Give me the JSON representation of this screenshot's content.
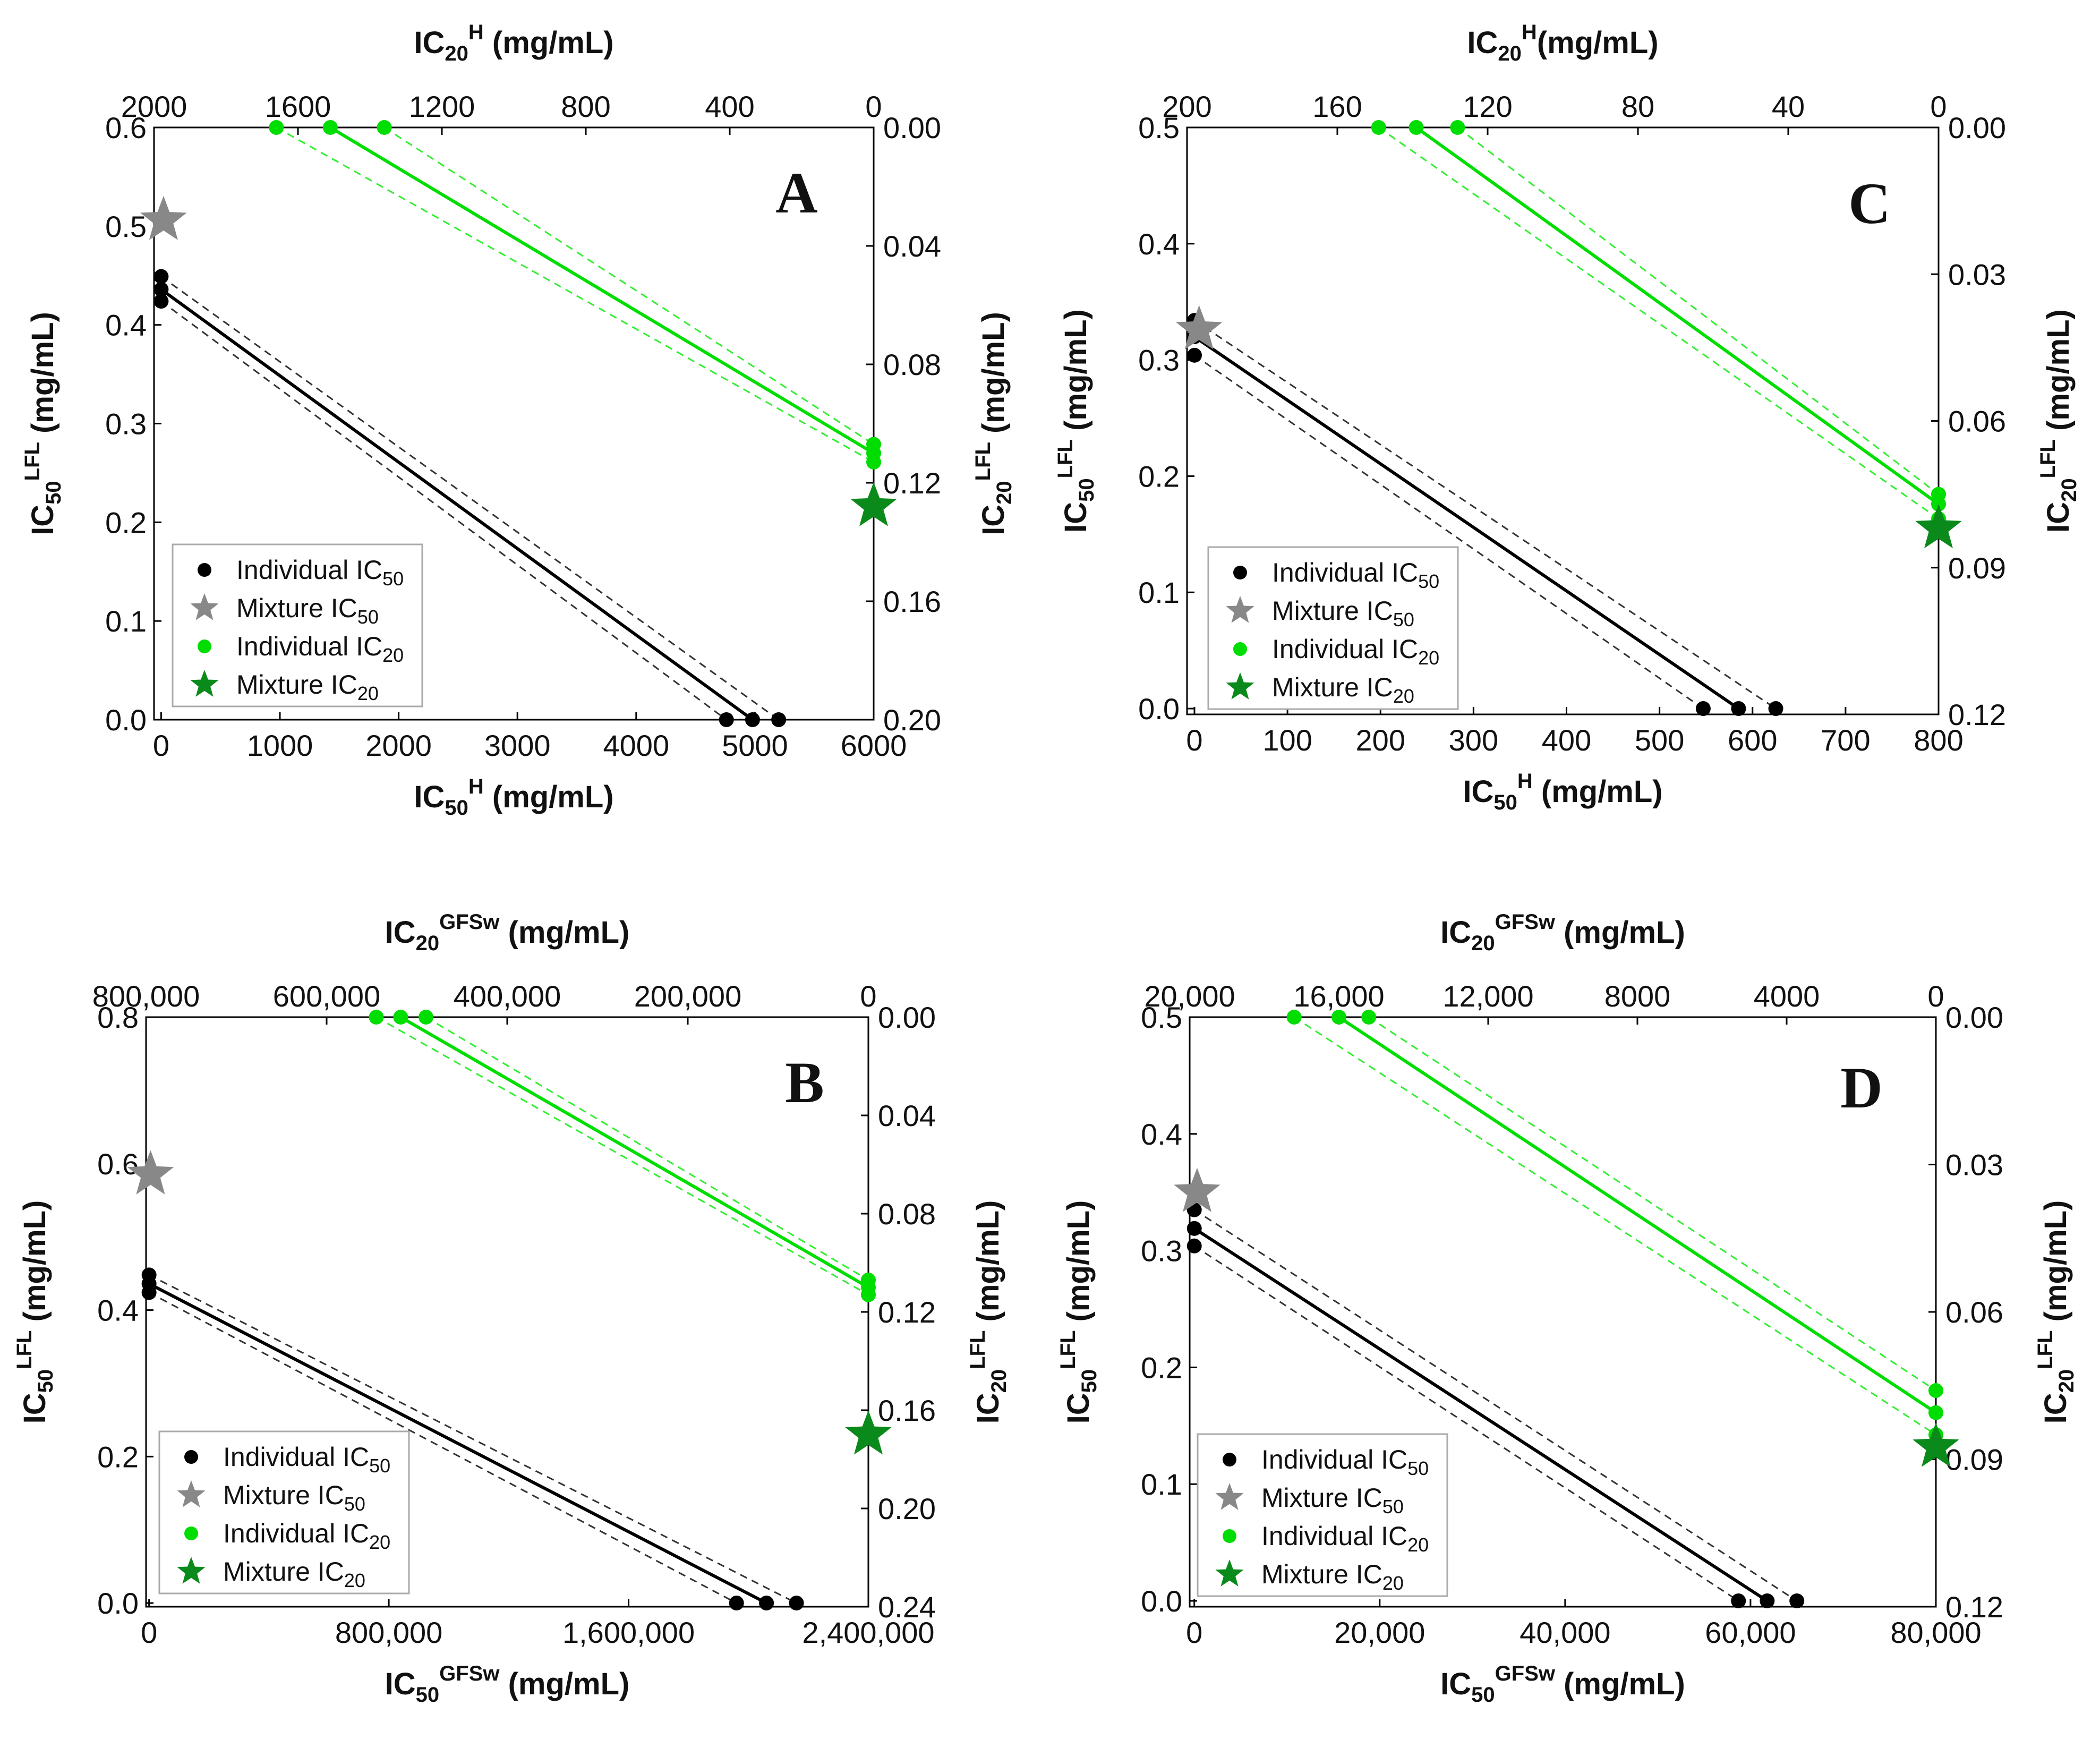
{
  "colors": {
    "black": "#000000",
    "gray": "#888888",
    "green": "#00dd00",
    "light_green": "#33ee33",
    "dark_green": "#0a8a1a"
  },
  "chart_data": [
    {
      "type": "scatter",
      "letter": "A",
      "x_title": {
        "base": "IC",
        "sub": "50",
        "sup": "H",
        "tail": " (mg/mL)"
      },
      "top_title": {
        "base": "IC",
        "sub": "20",
        "sup": "H",
        "tail": " (mg/mL)"
      },
      "left_title": {
        "base": "IC",
        "sub": "50",
        "sup": "LFL",
        "tail": " (mg/mL)"
      },
      "right_title": {
        "base": "IC",
        "sub": "20",
        "sup": "LFL",
        "tail": " (mg/mL)"
      },
      "xlim": [
        -60,
        6000
      ],
      "ylim": [
        0,
        0.6
      ],
      "top_lim": [
        2000,
        0
      ],
      "right_lim": [
        0,
        0.2
      ],
      "x_ticks": [
        {
          "v": 0,
          "label": "0"
        },
        {
          "v": 1000,
          "label": "1000"
        },
        {
          "v": 2000,
          "label": "2000"
        },
        {
          "v": 3000,
          "label": "3000"
        },
        {
          "v": 4000,
          "label": "4000"
        },
        {
          "v": 5000,
          "label": "5000"
        },
        {
          "v": 6000,
          "label": "6000"
        }
      ],
      "y_ticks": [
        {
          "v": 0,
          "label": "0.0"
        },
        {
          "v": 0.1,
          "label": "0.1"
        },
        {
          "v": 0.2,
          "label": "0.2"
        },
        {
          "v": 0.3,
          "label": "0.3"
        },
        {
          "v": 0.4,
          "label": "0.4"
        },
        {
          "v": 0.5,
          "label": "0.5"
        },
        {
          "v": 0.6,
          "label": "0.6"
        }
      ],
      "top_ticks": [
        {
          "v": 2000,
          "label": "2000"
        },
        {
          "v": 1600,
          "label": "1600"
        },
        {
          "v": 1200,
          "label": "1200"
        },
        {
          "v": 800,
          "label": "800"
        },
        {
          "v": 400,
          "label": "400"
        },
        {
          "v": 0,
          "label": "0"
        }
      ],
      "right_ticks": [
        {
          "v": 0,
          "label": "0.00"
        },
        {
          "v": 0.04,
          "label": "0.04"
        },
        {
          "v": 0.08,
          "label": "0.08"
        },
        {
          "v": 0.12,
          "label": "0.12"
        },
        {
          "v": 0.16,
          "label": "0.16"
        },
        {
          "v": 0.2,
          "label": "0.20"
        }
      ],
      "ic50_points": [
        [
          0,
          0.449
        ],
        [
          0,
          0.436
        ],
        [
          0,
          0.424
        ],
        [
          4760,
          0
        ],
        [
          4980,
          0
        ],
        [
          5200,
          0
        ]
      ],
      "ic50_line": [
        [
          0,
          0.436
        ],
        [
          4980,
          0
        ]
      ],
      "ic50_upper": [
        [
          0,
          0.449
        ],
        [
          5200,
          0
        ]
      ],
      "ic50_lower": [
        [
          0,
          0.424
        ],
        [
          4760,
          0
        ]
      ],
      "mixture_ic50": [
        20,
        0.506
      ],
      "ic20_points": [
        [
          1660,
          0
        ],
        [
          1510,
          0
        ],
        [
          1360,
          0
        ],
        [
          0,
          0.107
        ],
        [
          0,
          0.11
        ],
        [
          0,
          0.113
        ]
      ],
      "ic20_line": [
        [
          1510,
          0
        ],
        [
          0,
          0.11
        ]
      ],
      "ic20_upper": [
        [
          1360,
          0
        ],
        [
          0,
          0.107
        ]
      ],
      "ic20_lower": [
        [
          1660,
          0
        ],
        [
          0,
          0.113
        ]
      ],
      "mixture_ic20": [
        0,
        0.128
      ],
      "legend": [
        "Individual IC50",
        "Mixture IC50",
        "Individual IC20",
        "Mixture IC20"
      ]
    },
    {
      "type": "scatter",
      "letter": "C",
      "x_title": {
        "base": "IC",
        "sub": "50",
        "sup": "H",
        "tail": " (mg/mL)"
      },
      "top_title": {
        "base": "IC",
        "sub": "20",
        "sup": "H",
        "tail": "(mg/mL)"
      },
      "left_title": {
        "base": "IC",
        "sub": "50",
        "sup": "LFL",
        "tail": " (mg/mL)"
      },
      "right_title": {
        "base": "IC",
        "sub": "20",
        "sup": "LFL",
        "tail": " (mg/mL)"
      },
      "xlim": [
        -8,
        800
      ],
      "ylim": [
        -0.005,
        0.5
      ],
      "top_lim": [
        200,
        0
      ],
      "right_lim": [
        0,
        0.12
      ],
      "x_ticks": [
        {
          "v": 0,
          "label": "0"
        },
        {
          "v": 100,
          "label": "100"
        },
        {
          "v": 200,
          "label": "200"
        },
        {
          "v": 300,
          "label": "300"
        },
        {
          "v": 400,
          "label": "400"
        },
        {
          "v": 500,
          "label": "500"
        },
        {
          "v": 600,
          "label": "600"
        },
        {
          "v": 700,
          "label": "700"
        },
        {
          "v": 800,
          "label": "800"
        }
      ],
      "y_ticks": [
        {
          "v": 0,
          "label": "0.0"
        },
        {
          "v": 0.1,
          "label": "0.1"
        },
        {
          "v": 0.2,
          "label": "0.2"
        },
        {
          "v": 0.3,
          "label": "0.3"
        },
        {
          "v": 0.4,
          "label": "0.4"
        },
        {
          "v": 0.5,
          "label": "0.5"
        }
      ],
      "top_ticks": [
        {
          "v": 200,
          "label": "200"
        },
        {
          "v": 160,
          "label": "160"
        },
        {
          "v": 120,
          "label": "120"
        },
        {
          "v": 80,
          "label": "80"
        },
        {
          "v": 40,
          "label": "40"
        },
        {
          "v": 0,
          "label": "0"
        }
      ],
      "right_ticks": [
        {
          "v": 0,
          "label": "0.00"
        },
        {
          "v": 0.03,
          "label": "0.03"
        },
        {
          "v": 0.06,
          "label": "0.06"
        },
        {
          "v": 0.09,
          "label": "0.09"
        },
        {
          "v": 0.12,
          "label": "0.12"
        }
      ],
      "ic50_points": [
        [
          0,
          0.334
        ],
        [
          0,
          0.32
        ],
        [
          0,
          0.304
        ],
        [
          547,
          0
        ],
        [
          585,
          0
        ],
        [
          625,
          0
        ]
      ],
      "ic50_line": [
        [
          0,
          0.32
        ],
        [
          585,
          0
        ]
      ],
      "ic50_upper": [
        [
          0,
          0.334
        ],
        [
          625,
          0
        ]
      ],
      "ic50_lower": [
        [
          0,
          0.304
        ],
        [
          547,
          0
        ]
      ],
      "mixture_ic50": [
        5,
        0.326
      ],
      "ic20_points": [
        [
          149,
          0
        ],
        [
          139,
          0
        ],
        [
          128,
          0
        ],
        [
          0,
          0.075
        ],
        [
          0,
          0.077
        ],
        [
          0,
          0.08
        ]
      ],
      "ic20_line": [
        [
          139,
          0
        ],
        [
          0,
          0.077
        ]
      ],
      "ic20_upper": [
        [
          128,
          0
        ],
        [
          0,
          0.075
        ]
      ],
      "ic20_lower": [
        [
          149,
          0
        ],
        [
          0,
          0.08
        ]
      ],
      "mixture_ic20": [
        0,
        0.082
      ],
      "legend": [
        "Individual IC50",
        "Mixture IC50",
        "Individual IC20",
        "Mixture IC20"
      ]
    },
    {
      "type": "scatter",
      "letter": "B",
      "x_title": {
        "base": "IC",
        "sub": "50",
        "sup": "GFSw",
        "tail": " (mg/mL)"
      },
      "top_title": {
        "base": "IC",
        "sub": "20",
        "sup": "GFSw",
        "tail": " (mg/mL)"
      },
      "left_title": {
        "base": "IC",
        "sub": "50",
        "sup": "LFL",
        "tail": " (mg/mL)"
      },
      "right_title": {
        "base": "IC",
        "sub": "20",
        "sup": "LFL",
        "tail": " (mg/mL)"
      },
      "xlim": [
        -10000,
        2400000
      ],
      "ylim": [
        -0.005,
        0.8
      ],
      "top_lim": [
        800000,
        0
      ],
      "right_lim": [
        0,
        0.24
      ],
      "x_ticks": [
        {
          "v": 0,
          "label": "0"
        },
        {
          "v": 800000,
          "label": "800,000"
        },
        {
          "v": 1600000,
          "label": "1,600,000"
        },
        {
          "v": 2400000,
          "label": "2,400,000"
        }
      ],
      "y_ticks": [
        {
          "v": 0,
          "label": "0.0"
        },
        {
          "v": 0.2,
          "label": "0.2"
        },
        {
          "v": 0.4,
          "label": "0.4"
        },
        {
          "v": 0.6,
          "label": "0.6"
        },
        {
          "v": 0.8,
          "label": "0.8"
        }
      ],
      "top_ticks": [
        {
          "v": 800000,
          "label": "800,000"
        },
        {
          "v": 600000,
          "label": "600,000"
        },
        {
          "v": 400000,
          "label": "400,000"
        },
        {
          "v": 200000,
          "label": "200,000"
        },
        {
          "v": 0,
          "label": "0"
        }
      ],
      "right_ticks": [
        {
          "v": 0,
          "label": "0.00"
        },
        {
          "v": 0.04,
          "label": "0.04"
        },
        {
          "v": 0.08,
          "label": "0.08"
        },
        {
          "v": 0.12,
          "label": "0.12"
        },
        {
          "v": 0.16,
          "label": "0.16"
        },
        {
          "v": 0.2,
          "label": "0.20"
        },
        {
          "v": 0.24,
          "label": "0.24"
        }
      ],
      "ic50_points": [
        [
          0,
          0.448
        ],
        [
          0,
          0.436
        ],
        [
          0,
          0.424
        ],
        [
          1960000,
          0
        ],
        [
          2060000,
          0
        ],
        [
          2160000,
          0
        ]
      ],
      "ic50_line": [
        [
          0,
          0.436
        ],
        [
          2060000,
          0
        ]
      ],
      "ic50_upper": [
        [
          0,
          0.448
        ],
        [
          2160000,
          0
        ]
      ],
      "ic50_lower": [
        [
          0,
          0.424
        ],
        [
          1960000,
          0
        ]
      ],
      "mixture_ic50": [
        5000,
        0.585
      ],
      "ic20_points": [
        [
          545000,
          0
        ],
        [
          518000,
          0
        ],
        [
          490000,
          0
        ],
        [
          0,
          0.107
        ],
        [
          0,
          0.11
        ],
        [
          0,
          0.113
        ]
      ],
      "ic20_line": [
        [
          518000,
          0
        ],
        [
          0,
          0.11
        ]
      ],
      "ic20_upper": [
        [
          490000,
          0
        ],
        [
          0,
          0.107
        ]
      ],
      "ic20_lower": [
        [
          545000,
          0
        ],
        [
          0,
          0.113
        ]
      ],
      "mixture_ic20": [
        0,
        0.17
      ],
      "legend": [
        "Individual IC50",
        "Mixture IC50",
        "Individual IC20",
        "Mixture IC20"
      ]
    },
    {
      "type": "scatter",
      "letter": "D",
      "x_title": {
        "base": "IC",
        "sub": "50",
        "sup": "GFSw",
        "tail": " (mg/mL)"
      },
      "top_title": {
        "base": "IC",
        "sub": "20",
        "sup": "GFSw",
        "tail": " (mg/mL)"
      },
      "left_title": {
        "base": "IC",
        "sub": "50",
        "sup": "LFL",
        "tail": " (mg/mL)"
      },
      "right_title": {
        "base": "IC",
        "sub": "20",
        "sup": "LFL",
        "tail": " (mg/mL)"
      },
      "xlim": [
        -500,
        80000
      ],
      "ylim": [
        -0.005,
        0.5
      ],
      "top_lim": [
        20000,
        0
      ],
      "right_lim": [
        0,
        0.12
      ],
      "x_ticks": [
        {
          "v": 0,
          "label": "0"
        },
        {
          "v": 20000,
          "label": "20,000"
        },
        {
          "v": 40000,
          "label": "40,000"
        },
        {
          "v": 60000,
          "label": "60,000"
        },
        {
          "v": 80000,
          "label": "80,000"
        }
      ],
      "y_ticks": [
        {
          "v": 0,
          "label": "0.0"
        },
        {
          "v": 0.1,
          "label": "0.1"
        },
        {
          "v": 0.2,
          "label": "0.2"
        },
        {
          "v": 0.3,
          "label": "0.3"
        },
        {
          "v": 0.4,
          "label": "0.4"
        },
        {
          "v": 0.5,
          "label": "0.5"
        }
      ],
      "top_ticks": [
        {
          "v": 20000,
          "label": "20,000"
        },
        {
          "v": 16000,
          "label": "16,000"
        },
        {
          "v": 12000,
          "label": "12,000"
        },
        {
          "v": 8000,
          "label": "8000"
        },
        {
          "v": 4000,
          "label": "4000"
        },
        {
          "v": 0,
          "label": "0"
        }
      ],
      "right_ticks": [
        {
          "v": 0,
          "label": "0.00"
        },
        {
          "v": 0.03,
          "label": "0.03"
        },
        {
          "v": 0.06,
          "label": "0.06"
        },
        {
          "v": 0.09,
          "label": "0.09"
        },
        {
          "v": 0.12,
          "label": "0.12"
        }
      ],
      "ic50_points": [
        [
          0,
          0.335
        ],
        [
          0,
          0.319
        ],
        [
          0,
          0.304
        ],
        [
          58700,
          0
        ],
        [
          61800,
          0
        ],
        [
          65000,
          0
        ]
      ],
      "ic50_line": [
        [
          0,
          0.319
        ],
        [
          61800,
          0
        ]
      ],
      "ic50_upper": [
        [
          0,
          0.335
        ],
        [
          65000,
          0
        ]
      ],
      "ic50_lower": [
        [
          0,
          0.304
        ],
        [
          58700,
          0
        ]
      ],
      "mixture_ic50": [
        300,
        0.35
      ],
      "ic20_points": [
        [
          16000,
          0
        ],
        [
          17200,
          0
        ],
        [
          15200,
          0
        ],
        [
          0,
          0.076
        ],
        [
          0,
          0.0805
        ],
        [
          0,
          0.085
        ]
      ],
      "ic20_line": [
        [
          16000,
          0
        ],
        [
          0,
          0.0805
        ]
      ],
      "ic20_upper": [
        [
          15200,
          0
        ],
        [
          0,
          0.076
        ]
      ],
      "ic20_lower": [
        [
          17200,
          0
        ],
        [
          0,
          0.085
        ]
      ],
      "mixture_ic20": [
        0,
        0.0875
      ],
      "legend": [
        "Individual IC50",
        "Mixture IC50",
        "Individual IC20",
        "Mixture IC20"
      ]
    }
  ]
}
